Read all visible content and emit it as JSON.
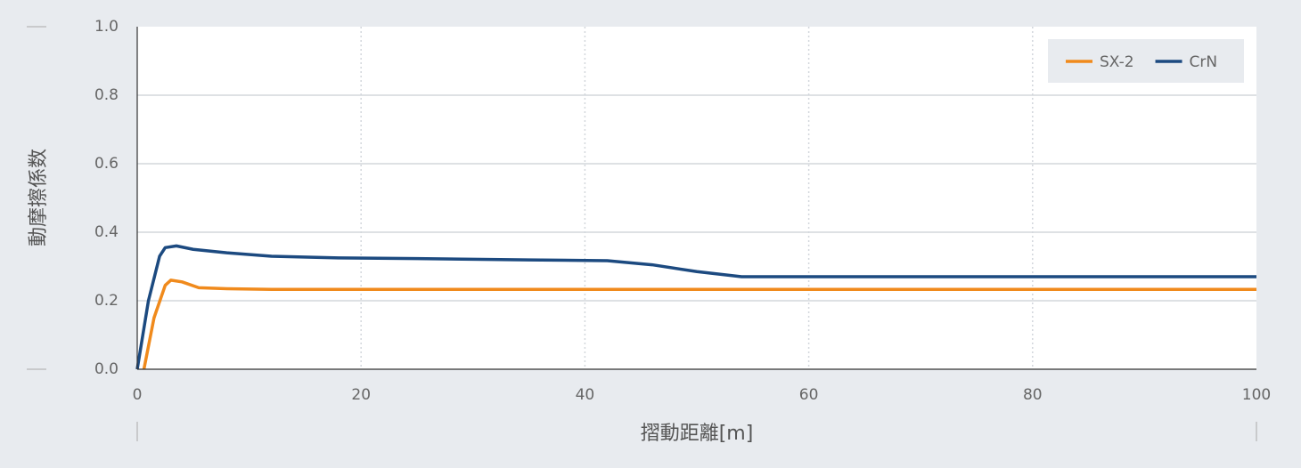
{
  "chart_data": {
    "type": "line",
    "xlabel": "摺動距離[m]",
    "ylabel": "動摩擦係数",
    "xlim": [
      0,
      100
    ],
    "xticks": [
      0,
      20,
      40,
      60,
      80,
      100
    ],
    "ylim": [
      0,
      1
    ],
    "yticks": [
      {
        "value": 0,
        "label": "0.0"
      },
      0.2,
      0.4,
      0.6,
      0.8,
      {
        "value": 1,
        "label": "1.0"
      }
    ],
    "grid": true,
    "legend": "upper right",
    "series": [
      {
        "name": "SX-2",
        "color": "#f08a1c",
        "x": [
          0.6,
          1.5,
          2.5,
          3,
          4,
          5.5,
          8,
          12,
          100
        ],
        "values": [
          0,
          0.15,
          0.245,
          0.26,
          0.255,
          0.238,
          0.235,
          0.233,
          0.233
        ]
      },
      {
        "name": "CrN",
        "color": "#1c4a80",
        "x": [
          0,
          1,
          2,
          2.5,
          3.5,
          5,
          8,
          12,
          18,
          25,
          35,
          42,
          46,
          50,
          54,
          60,
          100
        ],
        "values": [
          0,
          0.2,
          0.33,
          0.355,
          0.36,
          0.35,
          0.34,
          0.33,
          0.325,
          0.323,
          0.319,
          0.317,
          0.305,
          0.285,
          0.27,
          0.27,
          0.27
        ]
      }
    ]
  }
}
